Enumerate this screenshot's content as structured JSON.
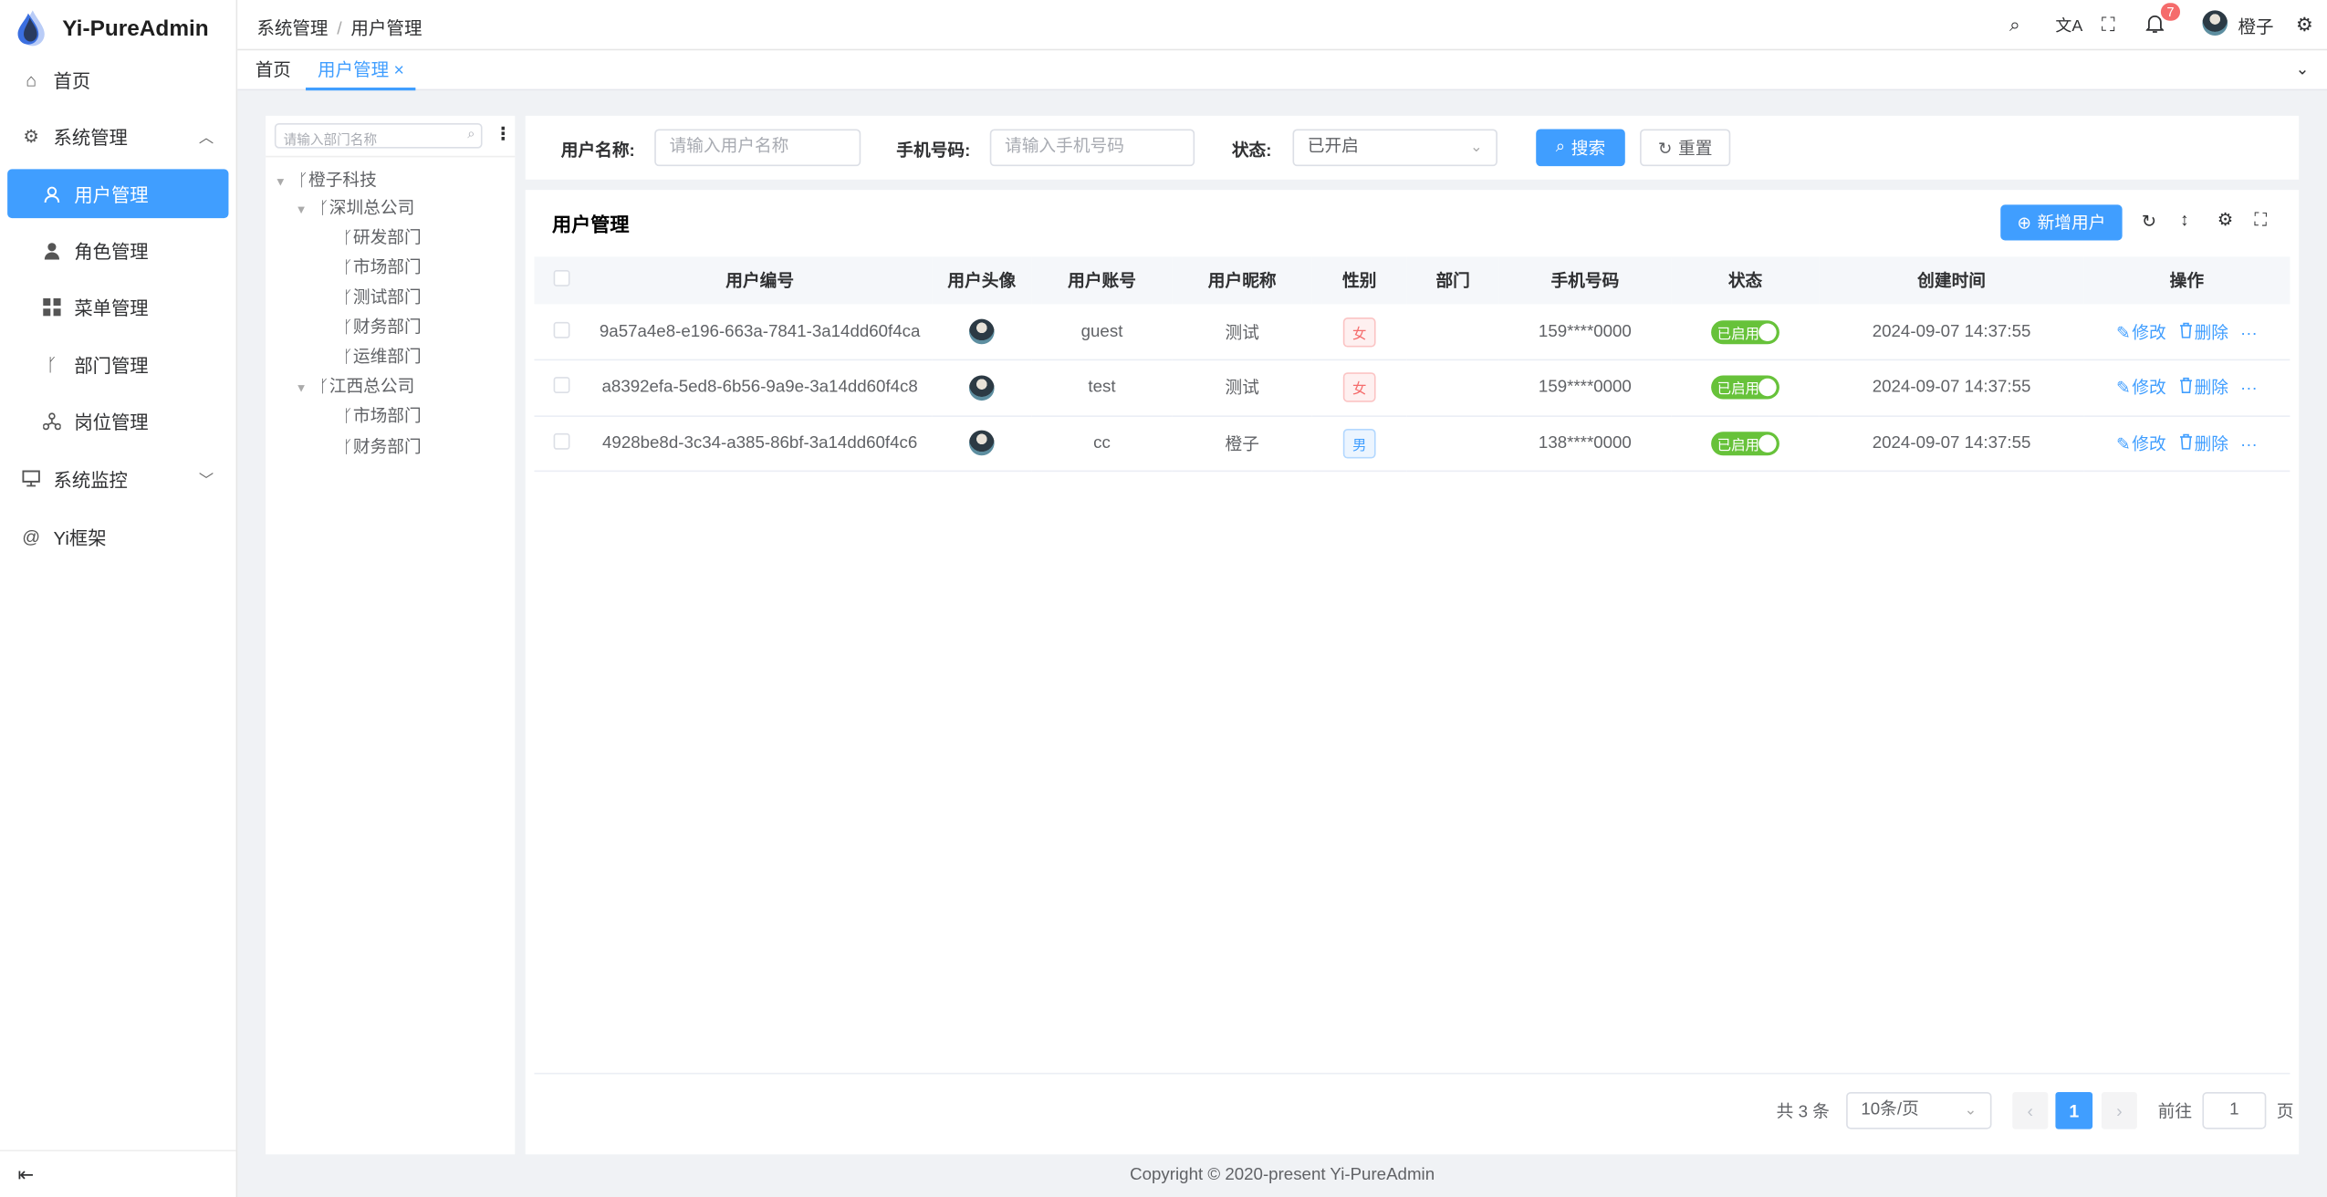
{
  "app": {
    "title": "Yi-PureAdmin",
    "footer": "Copyright © 2020-present Yi-PureAdmin"
  },
  "sidebar": {
    "items": [
      {
        "label": "首页",
        "icon": "home-icon"
      },
      {
        "label": "系统管理",
        "icon": "gear-icon",
        "expanded": true
      },
      {
        "label": "用户管理",
        "icon": "user-icon",
        "active": true
      },
      {
        "label": "角色管理",
        "icon": "role-icon"
      },
      {
        "label": "菜单管理",
        "icon": "menu-grid-icon"
      },
      {
        "label": "部门管理",
        "icon": "branch-icon"
      },
      {
        "label": "岗位管理",
        "icon": "hierarchy-icon"
      },
      {
        "label": "系统监控",
        "icon": "monitor-icon",
        "expanded": false
      },
      {
        "label": "Yi框架",
        "icon": "at-icon"
      }
    ]
  },
  "header": {
    "breadcrumb": [
      "系统管理",
      "用户管理"
    ],
    "notification_count": "7",
    "username": "橙子"
  },
  "tabs": [
    {
      "label": "首页"
    },
    {
      "label": "用户管理",
      "active": true
    }
  ],
  "tree": {
    "placeholder": "请输入部门名称",
    "nodes": [
      {
        "label": "橙子科技",
        "level": 0,
        "expanded": true
      },
      {
        "label": "深圳总公司",
        "level": 1,
        "expanded": true
      },
      {
        "label": "研发部门",
        "level": 2
      },
      {
        "label": "市场部门",
        "level": 2
      },
      {
        "label": "测试部门",
        "level": 2
      },
      {
        "label": "财务部门",
        "level": 2
      },
      {
        "label": "运维部门",
        "level": 2
      },
      {
        "label": "江西总公司",
        "level": 1,
        "expanded": true
      },
      {
        "label": "市场部门",
        "level": 2
      },
      {
        "label": "财务部门",
        "level": 2
      }
    ]
  },
  "search": {
    "username_label": "用户名称:",
    "username_placeholder": "请输入用户名称",
    "phone_label": "手机号码:",
    "phone_placeholder": "请输入手机号码",
    "status_label": "状态:",
    "status_value": "已开启",
    "search_button": "搜索",
    "reset_button": "重置"
  },
  "table": {
    "title": "用户管理",
    "add_button": "新增用户",
    "columns": [
      "用户编号",
      "用户头像",
      "用户账号",
      "用户昵称",
      "性别",
      "部门",
      "手机号码",
      "状态",
      "创建时间",
      "操作"
    ],
    "rows": [
      {
        "id": "9a57a4e8-e196-663a-7841-3a14dd60f4ca",
        "account": "guest",
        "nickname": "测试",
        "gender": "女",
        "dept": "",
        "phone": "159****0000",
        "status": "已启用",
        "created": "2024-09-07 14:37:55"
      },
      {
        "id": "a8392efa-5ed8-6b56-9a9e-3a14dd60f4c8",
        "account": "test",
        "nickname": "测试",
        "gender": "女",
        "dept": "",
        "phone": "159****0000",
        "status": "已启用",
        "created": "2024-09-07 14:37:55"
      },
      {
        "id": "4928be8d-3c34-a385-86bf-3a14dd60f4c6",
        "account": "cc",
        "nickname": "橙子",
        "gender": "男",
        "dept": "",
        "phone": "138****0000",
        "status": "已启用",
        "created": "2024-09-07 14:37:55"
      }
    ],
    "edit_label": "修改",
    "delete_label": "删除"
  },
  "pagination": {
    "total": "共 3 条",
    "page_size": "10条/页",
    "current_page": "1",
    "goto_label": "前往",
    "goto_value": "1",
    "page_suffix": "页"
  },
  "colors": {
    "primary": "#409eff",
    "success": "#67c23a",
    "danger": "#f56c6c"
  }
}
